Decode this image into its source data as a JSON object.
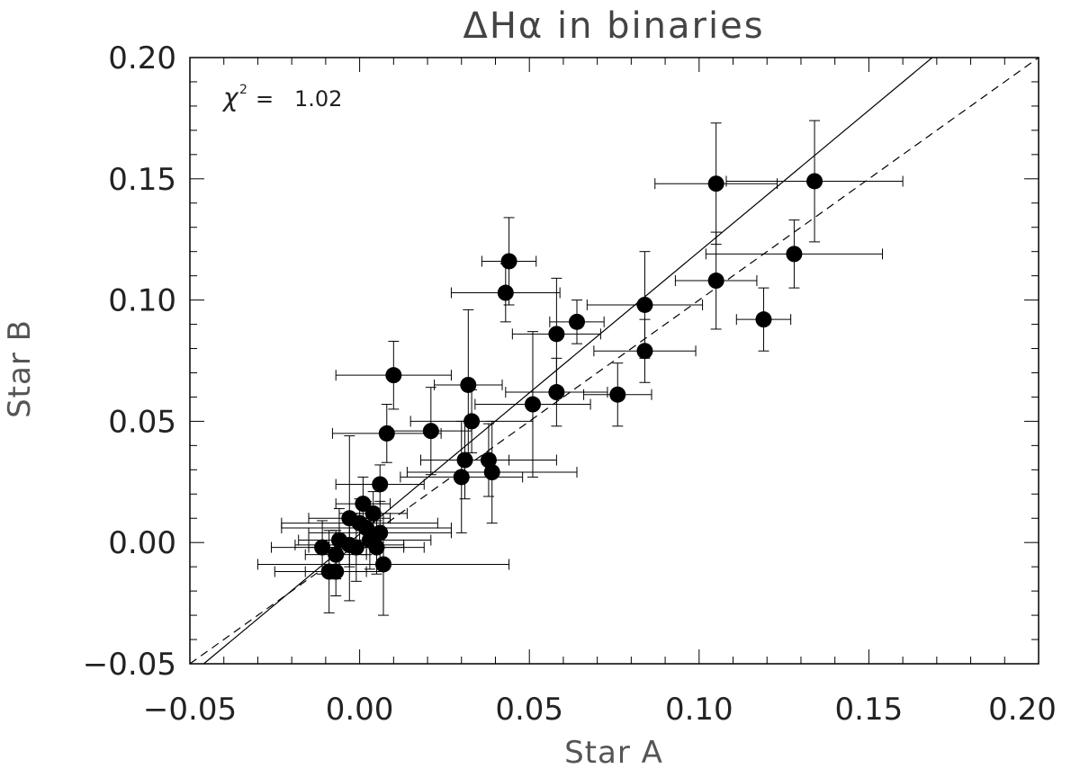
{
  "chart_data": {
    "type": "scatter",
    "title": "ΔHα in binaries",
    "xlabel": "Star A",
    "ylabel": "Star B",
    "xlim": [
      -0.05,
      0.2
    ],
    "ylim": [
      -0.05,
      0.2
    ],
    "x_ticks": [
      "−0.05",
      "0.00",
      "0.05",
      "0.10",
      "0.15",
      "0.20"
    ],
    "y_ticks": [
      "−0.05",
      "0.00",
      "0.05",
      "0.10",
      "0.15",
      "0.20"
    ],
    "annotation": {
      "symbol": "χ",
      "exponent": "2",
      "text": "=   1.02"
    },
    "grid": false,
    "reference_lines": [
      {
        "style": "solid",
        "slope": 1.165,
        "intercept": 0.0035
      },
      {
        "style": "dashed",
        "slope": 1.0,
        "intercept": 0.0
      }
    ],
    "points": [
      {
        "x": 0.134,
        "y": 0.149,
        "xerr": 0.026,
        "yerr": 0.025
      },
      {
        "x": 0.105,
        "y": 0.148,
        "xerr": 0.018,
        "yerr": 0.025
      },
      {
        "x": 0.128,
        "y": 0.119,
        "xerr": 0.026,
        "yerr": 0.014
      },
      {
        "x": 0.105,
        "y": 0.108,
        "xerr": 0.012,
        "yerr": 0.02
      },
      {
        "x": 0.119,
        "y": 0.092,
        "xerr": 0.008,
        "yerr": 0.013
      },
      {
        "x": 0.084,
        "y": 0.098,
        "xerr": 0.017,
        "yerr": 0.022
      },
      {
        "x": 0.084,
        "y": 0.079,
        "xerr": 0.015,
        "yerr": 0.013
      },
      {
        "x": 0.076,
        "y": 0.061,
        "xerr": 0.01,
        "yerr": 0.013
      },
      {
        "x": 0.044,
        "y": 0.116,
        "xerr": 0.008,
        "yerr": 0.018
      },
      {
        "x": 0.043,
        "y": 0.103,
        "xerr": 0.016,
        "yerr": 0.012
      },
      {
        "x": 0.064,
        "y": 0.091,
        "xerr": 0.008,
        "yerr": 0.009
      },
      {
        "x": 0.058,
        "y": 0.086,
        "xerr": 0.013,
        "yerr": 0.023
      },
      {
        "x": 0.058,
        "y": 0.062,
        "xerr": 0.015,
        "yerr": 0.014
      },
      {
        "x": 0.051,
        "y": 0.057,
        "xerr": 0.017,
        "yerr": 0.03
      },
      {
        "x": 0.032,
        "y": 0.065,
        "xerr": 0.01,
        "yerr": 0.031
      },
      {
        "x": 0.033,
        "y": 0.05,
        "xerr": 0.018,
        "yerr": 0.013
      },
      {
        "x": 0.01,
        "y": 0.069,
        "xerr": 0.017,
        "yerr": 0.014
      },
      {
        "x": 0.021,
        "y": 0.046,
        "xerr": 0.012,
        "yerr": 0.018
      },
      {
        "x": 0.008,
        "y": 0.045,
        "xerr": 0.016,
        "yerr": 0.012
      },
      {
        "x": 0.031,
        "y": 0.034,
        "xerr": 0.013,
        "yerr": 0.016
      },
      {
        "x": 0.038,
        "y": 0.034,
        "xerr": 0.02,
        "yerr": 0.015
      },
      {
        "x": 0.03,
        "y": 0.027,
        "xerr": 0.018,
        "yerr": 0.023
      },
      {
        "x": 0.039,
        "y": 0.029,
        "xerr": 0.025,
        "yerr": 0.021
      },
      {
        "x": 0.006,
        "y": 0.024,
        "xerr": 0.013,
        "yerr": 0.008
      },
      {
        "x": 0.001,
        "y": 0.016,
        "xerr": 0.008,
        "yerr": 0.011
      },
      {
        "x": 0.004,
        "y": 0.012,
        "xerr": 0.01,
        "yerr": 0.009
      },
      {
        "x": -0.003,
        "y": 0.01,
        "xerr": 0.012,
        "yerr": 0.034
      },
      {
        "x": 0.0,
        "y": 0.008,
        "xerr": 0.023,
        "yerr": 0.01
      },
      {
        "x": 0.002,
        "y": 0.006,
        "xerr": 0.025,
        "yerr": 0.011
      },
      {
        "x": 0.006,
        "y": 0.004,
        "xerr": 0.021,
        "yerr": 0.013
      },
      {
        "x": 0.003,
        "y": 0.001,
        "xerr": 0.018,
        "yerr": 0.012
      },
      {
        "x": -0.006,
        "y": 0.001,
        "xerr": 0.012,
        "yerr": 0.013
      },
      {
        "x": -0.003,
        "y": -0.001,
        "xerr": 0.016,
        "yerr": 0.009
      },
      {
        "x": -0.001,
        "y": -0.002,
        "xerr": 0.014,
        "yerr": 0.014
      },
      {
        "x": 0.005,
        "y": -0.002,
        "xerr": 0.014,
        "yerr": 0.011
      },
      {
        "x": -0.011,
        "y": -0.002,
        "xerr": 0.015,
        "yerr": 0.011
      },
      {
        "x": -0.007,
        "y": -0.005,
        "xerr": 0.009,
        "yerr": 0.01
      },
      {
        "x": -0.009,
        "y": -0.012,
        "xerr": 0.016,
        "yerr": 0.017
      },
      {
        "x": -0.007,
        "y": -0.012,
        "xerr": 0.009,
        "yerr": 0.01
      },
      {
        "x": 0.007,
        "y": -0.009,
        "xerr": 0.037,
        "yerr": 0.021
      }
    ]
  }
}
